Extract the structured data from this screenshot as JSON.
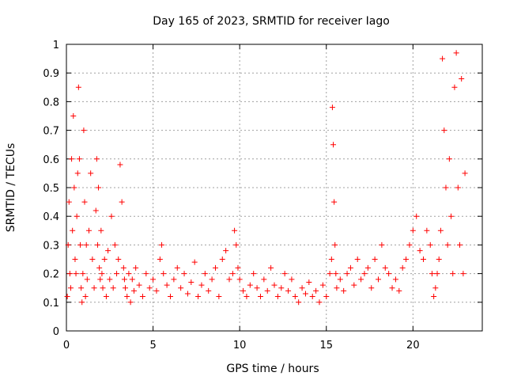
{
  "chart_data": {
    "type": "scatter",
    "title": "Day 165 of 2023, SRMTID for receiver Iago",
    "xlabel": "GPS time / hours",
    "ylabel": "SRMTID / TECUs",
    "xlim": [
      0,
      24
    ],
    "ylim": [
      0,
      1
    ],
    "xticks": [
      0,
      5,
      10,
      15,
      20
    ],
    "yticks": [
      0,
      0.1,
      0.2,
      0.3,
      0.4,
      0.5,
      0.6,
      0.7,
      0.8,
      0.9,
      1
    ],
    "xtick_labels": [
      "0",
      "5",
      "10",
      "15",
      "20"
    ],
    "ytick_labels": [
      "0",
      "0.1",
      "0.2",
      "0.3",
      "0.4",
      "0.5",
      "0.6",
      "0.7",
      "0.8",
      "0.9",
      "1"
    ],
    "grid": true,
    "marker": "+",
    "color": "#ff0000",
    "series": [
      {
        "name": "SRMTID",
        "x": [
          0.05,
          0.1,
          0.15,
          0.2,
          0.25,
          0.3,
          0.35,
          0.4,
          0.45,
          0.5,
          0.55,
          0.6,
          0.65,
          0.7,
          0.75,
          0.8,
          0.85,
          0.9,
          0.95,
          1.0,
          1.05,
          1.1,
          1.15,
          1.2,
          1.3,
          1.4,
          1.5,
          1.6,
          1.7,
          1.75,
          1.8,
          1.85,
          1.9,
          1.95,
          2.0,
          2.05,
          2.1,
          2.2,
          2.3,
          2.4,
          2.5,
          2.6,
          2.7,
          2.8,
          2.9,
          3.0,
          3.1,
          3.2,
          3.3,
          3.35,
          3.4,
          3.5,
          3.6,
          3.7,
          3.8,
          3.9,
          4.0,
          4.2,
          4.4,
          4.6,
          4.8,
          5.0,
          5.2,
          5.4,
          5.5,
          5.6,
          5.8,
          6.0,
          6.2,
          6.4,
          6.6,
          6.8,
          7.0,
          7.2,
          7.4,
          7.6,
          7.8,
          8.0,
          8.2,
          8.4,
          8.6,
          8.8,
          9.0,
          9.2,
          9.4,
          9.6,
          9.7,
          9.8,
          9.9,
          10.0,
          10.2,
          10.4,
          10.6,
          10.8,
          11.0,
          11.2,
          11.4,
          11.6,
          11.8,
          12.0,
          12.2,
          12.4,
          12.6,
          12.8,
          13.0,
          13.2,
          13.4,
          13.6,
          13.8,
          14.0,
          14.2,
          14.4,
          14.6,
          14.8,
          15.0,
          15.2,
          15.3,
          15.35,
          15.4,
          15.45,
          15.5,
          15.55,
          15.6,
          15.8,
          16.0,
          16.2,
          16.4,
          16.6,
          16.8,
          17.0,
          17.2,
          17.4,
          17.6,
          17.8,
          18.0,
          18.2,
          18.4,
          18.6,
          18.8,
          19.0,
          19.2,
          19.4,
          19.6,
          19.8,
          20.0,
          20.2,
          20.4,
          20.6,
          20.8,
          21.0,
          21.1,
          21.2,
          21.3,
          21.4,
          21.5,
          21.6,
          21.7,
          21.8,
          21.9,
          22.0,
          22.1,
          22.2,
          22.3,
          22.4,
          22.5,
          22.6,
          22.7,
          22.8,
          22.9,
          23.0,
          0.12,
          0.3,
          0.45,
          0.2,
          0.15,
          0.6,
          0.35,
          0.75,
          0.5,
          0.25,
          0.2,
          0.4,
          0.55,
          0.85,
          0.6,
          0.3,
          0.15,
          0.1,
          0.2,
          0.7,
          0.45,
          0.12,
          0.3,
          0.18,
          0.35,
          0.55,
          0.25,
          0.15,
          0.42,
          0.6,
          0.3,
          0.5,
          0.22,
          0.18,
          0.35,
          0.2,
          0.15,
          0.25,
          0.12,
          0.28,
          0.18,
          0.4,
          0.15,
          0.3,
          0.2,
          0.25,
          0.58,
          0.45,
          0.22,
          0.18,
          0.15,
          0.12,
          0.2,
          0.1,
          0.18,
          0.14,
          0.22,
          0.16,
          0.12,
          0.2,
          0.15,
          0.18,
          0.14,
          0.25,
          0.3,
          0.2,
          0.16,
          0.12,
          0.18,
          0.22,
          0.15,
          0.2,
          0.13,
          0.17,
          0.24,
          0.12,
          0.16,
          0.2,
          0.14,
          0.18,
          0.22,
          0.12,
          0.25,
          0.28,
          0.18,
          0.2,
          0.35,
          0.3,
          0.22,
          0.18,
          0.14,
          0.12,
          0.16,
          0.2,
          0.15,
          0.12,
          0.18,
          0.14,
          0.22,
          0.16,
          0.12,
          0.15,
          0.2,
          0.14,
          0.18,
          0.12,
          0.1,
          0.15,
          0.13,
          0.17,
          0.12,
          0.14,
          0.1,
          0.16,
          0.12,
          0.2,
          0.25,
          0.78,
          0.65,
          0.45,
          0.3,
          0.2,
          0.15,
          0.18,
          0.14,
          0.2,
          0.22,
          0.16,
          0.25,
          0.18,
          0.2,
          0.22,
          0.15,
          0.25,
          0.18,
          0.3,
          0.22,
          0.2,
          0.15,
          0.18,
          0.14,
          0.22,
          0.25,
          0.3,
          0.35,
          0.4,
          0.28,
          0.25,
          0.35,
          0.3,
          0.2,
          0.12,
          0.15,
          0.2,
          0.25,
          0.35,
          0.95,
          0.7,
          0.5,
          0.3,
          0.6,
          0.4,
          0.2,
          0.85,
          0.97,
          0.5,
          0.3,
          0.88,
          0.2,
          0.55
        ]
      }
    ]
  }
}
